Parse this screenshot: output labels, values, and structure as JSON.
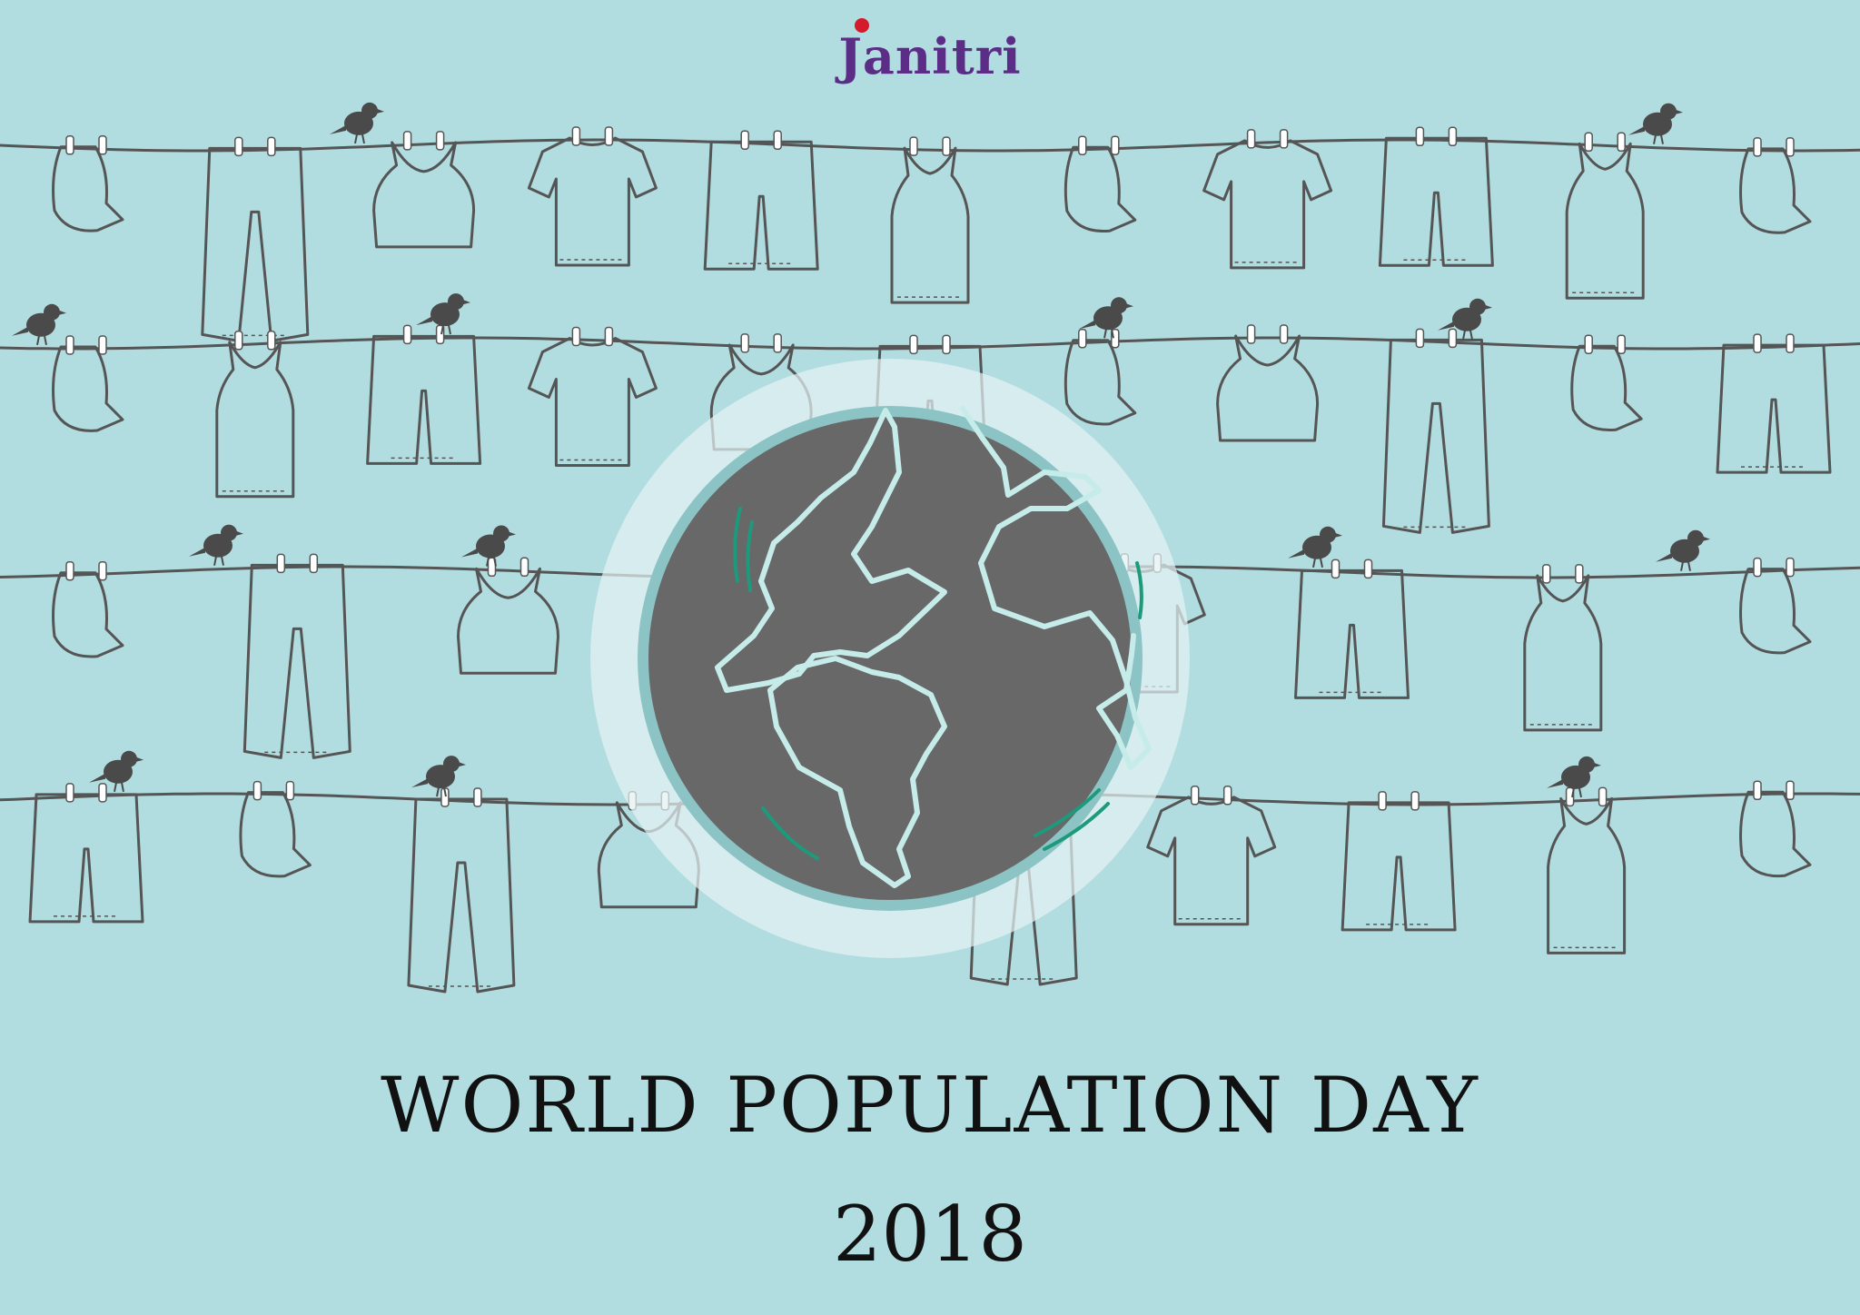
{
  "brand": {
    "name": "Janitri"
  },
  "headline": {
    "line1": "WORLD POPULATION DAY",
    "line2": "2018"
  },
  "colors": {
    "background": "#b2dde0",
    "line": "#555555",
    "globe": "#686868",
    "globe_ring": "#8cc3c5",
    "halo": "#e3f1f2",
    "continent_outline": "#c6ecea",
    "highlight": "#1d9a7c",
    "brand_text": "#5b2d86",
    "brand_dot": "#d51a2b"
  },
  "clotheslines": [
    {
      "items": [
        "cap",
        "jeans",
        "crop-top",
        "tshirt",
        "shorts",
        "tank",
        "cap",
        "tshirt",
        "shorts",
        "tank",
        "cap"
      ]
    },
    {
      "items": [
        "cap",
        "tank",
        "shorts",
        "tshirt",
        "crop-top",
        "shorts",
        "cap",
        "crop-top",
        "jeans",
        "cap",
        "shorts"
      ]
    },
    {
      "items": [
        "cap",
        "jeans",
        "crop-top",
        "tshirt",
        "tshirt",
        "tshirt",
        "shorts",
        "tank",
        "cap"
      ]
    },
    {
      "items": [
        "shorts",
        "cap",
        "jeans",
        "crop-top",
        "cap",
        "jeans",
        "tshirt",
        "shorts",
        "tank",
        "cap"
      ]
    }
  ]
}
